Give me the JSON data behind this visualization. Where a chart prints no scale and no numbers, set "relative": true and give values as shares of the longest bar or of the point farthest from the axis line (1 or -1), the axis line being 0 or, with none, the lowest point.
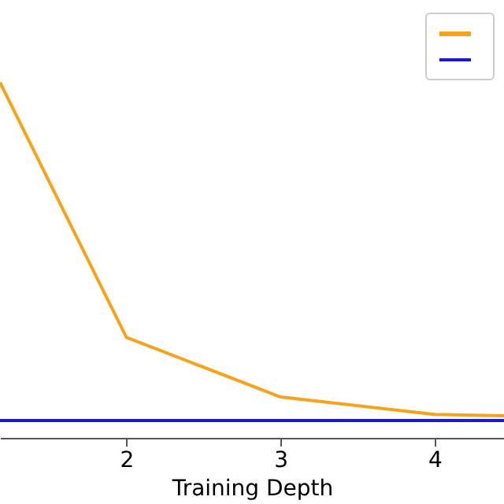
{
  "chart_data": {
    "type": "line",
    "xlabel": "Training Depth",
    "relative": true,
    "xlim": [
      1.18,
      4.45
    ],
    "xticks": [
      2,
      3,
      4
    ],
    "grid": false,
    "series": [
      {
        "color": "#f5a31a",
        "x": [
          1.18,
          2,
          3,
          4,
          4.45
        ],
        "values": [
          1,
          0.283,
          0.115,
          0.066,
          0.062
        ]
      },
      {
        "color": "#1a1acc",
        "x": [
          1.18,
          4.45
        ],
        "values": [
          0.049,
          0.049
        ]
      }
    ]
  }
}
